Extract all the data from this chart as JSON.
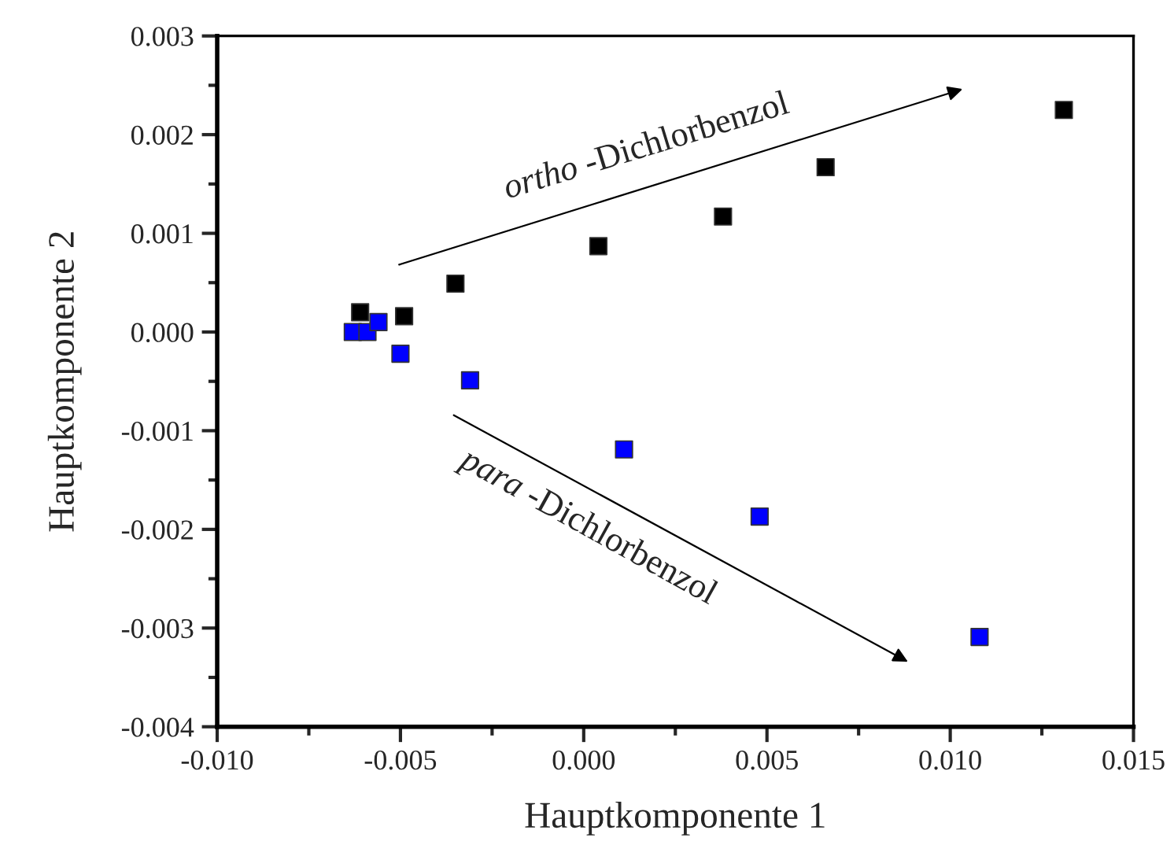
{
  "chart_data": {
    "type": "scatter",
    "xlabel": "Hauptkomponente 1",
    "ylabel": "Hauptkomponente 2",
    "xlim": [
      -0.01,
      0.015
    ],
    "ylim": [
      -0.004,
      0.003
    ],
    "xticks": [
      {
        "value": -0.01,
        "label": "-0.010"
      },
      {
        "value": -0.005,
        "label": "-0.005"
      },
      {
        "value": 0.0,
        "label": "0.000"
      },
      {
        "value": 0.005,
        "label": "0.005"
      },
      {
        "value": 0.01,
        "label": "0.010"
      },
      {
        "value": 0.015,
        "label": "0.015"
      }
    ],
    "yticks": [
      {
        "value": -0.004,
        "label": "-0.004"
      },
      {
        "value": -0.003,
        "label": "-0.003"
      },
      {
        "value": -0.002,
        "label": "-0.002"
      },
      {
        "value": -0.001,
        "label": "-0.001"
      },
      {
        "value": 0.0,
        "label": "0.000"
      },
      {
        "value": 0.001,
        "label": "0.001"
      },
      {
        "value": 0.002,
        "label": "0.002"
      },
      {
        "value": 0.003,
        "label": "0.003"
      }
    ],
    "marker": "square",
    "grid": false,
    "legend": false,
    "series": [
      {
        "color": "#000000",
        "x": [
          -0.0061,
          -0.0049,
          -0.0035,
          0.0004,
          0.0038,
          0.0066,
          0.0131
        ],
        "values": [
          0.0002,
          0.00016,
          0.00049,
          0.00087,
          0.00117,
          0.00167,
          0.00225
        ]
      },
      {
        "color": "#0000ff",
        "x": [
          -0.0063,
          -0.0059,
          -0.0056,
          -0.005,
          -0.0031,
          0.0011,
          0.0048,
          0.0108
        ],
        "values": [
          0.0,
          0.0,
          0.0001,
          -0.00022,
          -0.00049,
          -0.00119,
          -0.00187,
          -0.00309
        ]
      }
    ],
    "annotations": [
      "ortho -Dichlorbenzol",
      "para -Dichlorbenzol"
    ]
  }
}
